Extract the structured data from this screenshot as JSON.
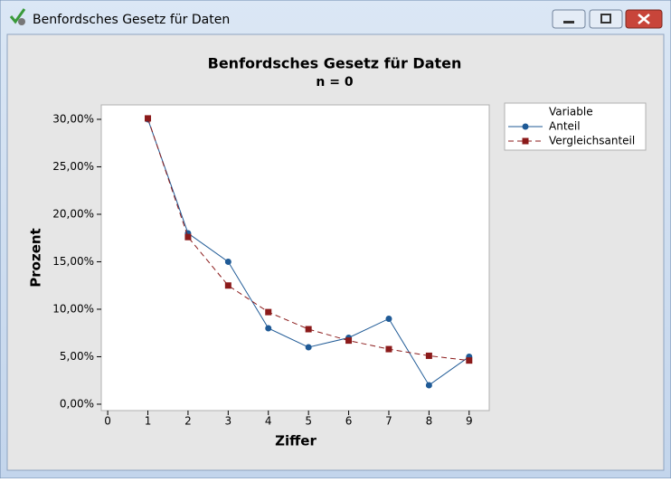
{
  "window": {
    "title": "Benfordsches Gesetz für Daten"
  },
  "chart_data": {
    "type": "line",
    "title": "Benfordsches Gesetz für Daten",
    "subtitle": "n = 0",
    "x_label": "Ziffer",
    "y_label": "Prozent",
    "legend_title": "Variable",
    "legend_position": "right",
    "x": [
      1,
      2,
      3,
      4,
      5,
      6,
      7,
      8,
      9
    ],
    "series": [
      {
        "name": "Anteil",
        "color": "#1f5a96",
        "marker": "circle",
        "dash": false,
        "values": [
          30,
          18,
          15,
          8,
          6,
          7,
          9,
          2,
          5
        ]
      },
      {
        "name": "Vergleichsanteil",
        "color": "#8b1a1a",
        "marker": "square",
        "dash": true,
        "values": [
          30.1,
          17.6,
          12.5,
          9.7,
          7.9,
          6.7,
          5.8,
          5.1,
          4.6
        ]
      }
    ],
    "xlim": [
      -0.16,
      9.5
    ],
    "xticks": [
      0,
      1,
      2,
      3,
      4,
      5,
      6,
      7,
      8,
      9
    ],
    "ylim": [
      -0.67,
      31.52
    ],
    "yticks": [
      {
        "value": 0,
        "label": "0,00%"
      },
      {
        "value": 5,
        "label": "5,00%"
      },
      {
        "value": 10,
        "label": "10,00%"
      },
      {
        "value": 15,
        "label": "15,00%"
      },
      {
        "value": 20,
        "label": "20,00%"
      },
      {
        "value": 25,
        "label": "25,00%"
      },
      {
        "value": 30,
        "label": "30,00%"
      }
    ]
  }
}
